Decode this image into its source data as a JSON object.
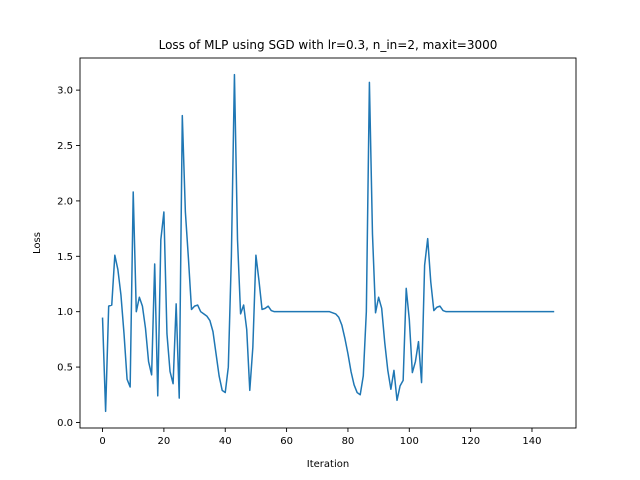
{
  "chart_data": {
    "type": "line",
    "title": "Loss of MLP using SGD with lr=0.3, n_in=2, maxit=3000",
    "xlabel": "Iteration",
    "ylabel": "Loss",
    "xlim": [
      -7.35,
      154.35
    ],
    "ylim": [
      -0.05,
      3.29
    ],
    "xticks": [
      0,
      20,
      40,
      60,
      80,
      100,
      120,
      140
    ],
    "yticks": [
      0.0,
      0.5,
      1.0,
      1.5,
      2.0,
      2.5,
      3.0
    ],
    "xtick_labels": [
      "0",
      "20",
      "40",
      "60",
      "80",
      "100",
      "120",
      "140"
    ],
    "ytick_labels": [
      "0.0",
      "0.5",
      "1.0",
      "1.5",
      "2.0",
      "2.5",
      "3.0"
    ],
    "grid": false,
    "series": [
      {
        "color": "#1f77b4",
        "x": [
          0,
          1,
          2,
          3,
          4,
          5,
          6,
          7,
          8,
          9,
          10,
          11,
          12,
          13,
          14,
          15,
          16,
          17,
          18,
          19,
          20,
          21,
          22,
          23,
          24,
          25,
          26,
          27,
          28,
          29,
          30,
          31,
          32,
          33,
          34,
          35,
          36,
          37,
          38,
          39,
          40,
          41,
          42,
          43,
          44,
          45,
          46,
          47,
          48,
          49,
          50,
          51,
          52,
          53,
          54,
          55,
          56,
          57,
          58,
          59,
          60,
          61,
          62,
          63,
          64,
          65,
          66,
          67,
          68,
          69,
          70,
          71,
          72,
          73,
          74,
          75,
          76,
          77,
          78,
          79,
          80,
          81,
          82,
          83,
          84,
          85,
          86,
          87,
          88,
          89,
          90,
          91,
          92,
          93,
          94,
          95,
          96,
          97,
          98,
          99,
          100,
          101,
          102,
          103,
          104,
          105,
          106,
          107,
          108,
          109,
          110,
          111,
          112,
          113,
          114,
          115,
          116,
          117,
          118,
          119,
          120,
          121,
          122,
          123,
          124,
          125,
          126,
          127,
          128,
          129,
          130,
          131,
          132,
          133,
          134,
          135,
          136,
          137,
          138,
          139,
          140,
          141,
          142,
          143,
          144,
          145,
          146,
          147
        ],
        "y": [
          0.94,
          0.1,
          1.05,
          1.06,
          1.51,
          1.38,
          1.15,
          0.8,
          0.39,
          0.32,
          2.08,
          1.0,
          1.13,
          1.05,
          0.85,
          0.55,
          0.43,
          1.43,
          0.24,
          1.65,
          1.9,
          0.8,
          0.46,
          0.35,
          1.07,
          0.22,
          2.77,
          1.9,
          1.48,
          1.02,
          1.05,
          1.06,
          1.0,
          0.98,
          0.96,
          0.92,
          0.82,
          0.62,
          0.42,
          0.29,
          0.27,
          0.5,
          1.5,
          3.14,
          1.65,
          0.98,
          1.06,
          0.84,
          0.29,
          0.68,
          1.51,
          1.28,
          1.02,
          1.03,
          1.05,
          1.01,
          1.0,
          1.0,
          1.0,
          1.0,
          1.0,
          1.0,
          1.0,
          1.0,
          1.0,
          1.0,
          1.0,
          1.0,
          1.0,
          1.0,
          1.0,
          1.0,
          1.0,
          1.0,
          1.0,
          0.99,
          0.98,
          0.95,
          0.88,
          0.76,
          0.62,
          0.46,
          0.34,
          0.27,
          0.25,
          0.42,
          1.0,
          3.07,
          1.7,
          0.99,
          1.13,
          1.03,
          0.72,
          0.47,
          0.3,
          0.47,
          0.2,
          0.33,
          0.38,
          1.21,
          0.93,
          0.45,
          0.55,
          0.73,
          0.36,
          1.42,
          1.66,
          1.27,
          1.01,
          1.04,
          1.05,
          1.01,
          1.0,
          1.0,
          1.0,
          1.0,
          1.0,
          1.0,
          1.0,
          1.0,
          1.0,
          1.0,
          1.0,
          1.0,
          1.0,
          1.0,
          1.0,
          1.0,
          1.0,
          1.0,
          1.0,
          1.0,
          1.0,
          1.0,
          1.0,
          1.0,
          1.0,
          1.0,
          1.0,
          1.0,
          1.0,
          1.0,
          1.0,
          1.0,
          1.0,
          1.0,
          1.0,
          1.0
        ]
      }
    ]
  }
}
